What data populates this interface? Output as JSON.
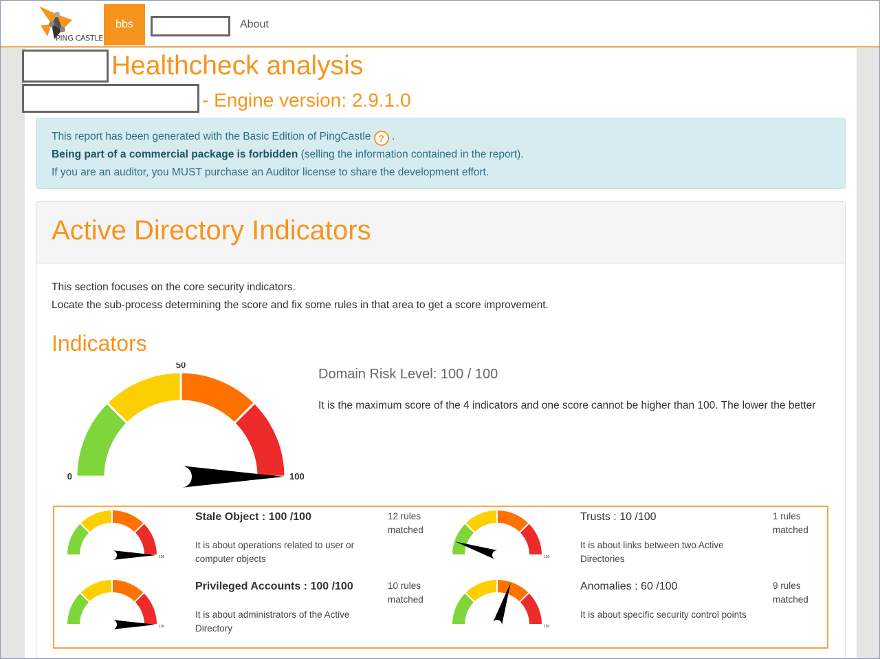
{
  "navbar": {
    "brand_text": "PING CASTLE",
    "nav_bbs": "bbs",
    "nav_about": "About"
  },
  "header": {
    "title": "Healthcheck analysis",
    "subtitle": "- Engine version: 2.9.1.0"
  },
  "alert": {
    "line1": "This report has been generated with the Basic Edition of PingCastle",
    "help_glyph": "?",
    "line1_end": ".",
    "line2_bold": "Being part of a commercial package is forbidden",
    "line2_rest": " (selling the information contained in the report).",
    "line3": "If you are an auditor, you MUST purchase an Auditor license to share the development effort."
  },
  "panel": {
    "heading": "Active Directory Indicators",
    "intro1": "This section focuses on the core security indicators.",
    "intro2": "Locate the sub-process determining the score and fix some rules in that area to get a score improvement.",
    "indicators_heading": "Indicators"
  },
  "main_gauge": {
    "value": 100,
    "min_label": "0",
    "mid_label": "50",
    "max_label": "100"
  },
  "risk": {
    "title": "Domain Risk Level: 100 / 100",
    "description": "It is the maximum score of the 4 indicators and one score cannot be higher than 100. The lower the better"
  },
  "sub_indicators": [
    {
      "title": "Stale Object : 100 /100",
      "bold": true,
      "description": "It is about operations related to user or computer objects",
      "rules": "12 rules matched",
      "value": 100
    },
    {
      "title": "Trusts : 10 /100",
      "bold": false,
      "description": "It is about links between two Active Directories",
      "rules": "1 rules matched",
      "value": 10
    },
    {
      "title": "Privileged Accounts : 100 /100",
      "bold": true,
      "description": "It is about administrators of the Active Directory",
      "rules": "10 rules matched",
      "value": 100
    },
    {
      "title": "Anomalies : 60 /100",
      "bold": false,
      "description": "It is about specific security control points",
      "rules": "9 rules matched",
      "value": 60
    }
  ],
  "colors": {
    "accent": "#f7941d",
    "gauge_green": "#7ed63a",
    "gauge_yellow": "#fcd000",
    "gauge_orange": "#ff7200",
    "gauge_red": "#ee2b2b",
    "alert_bg": "#d6ecf1"
  }
}
